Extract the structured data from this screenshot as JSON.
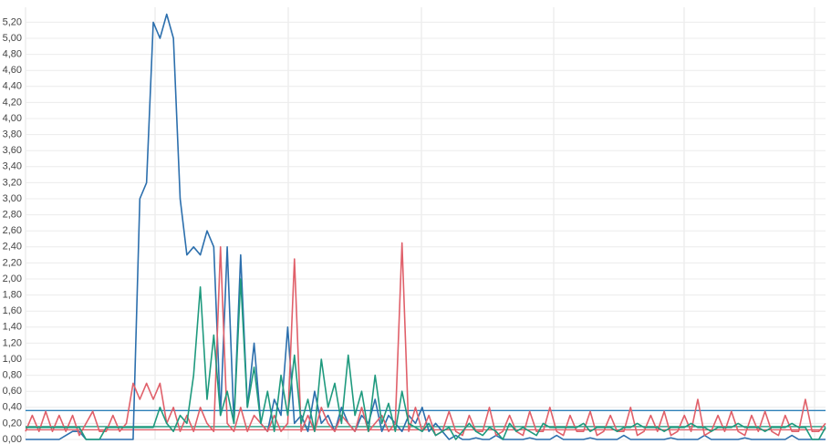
{
  "chart_data": {
    "type": "line",
    "ylim": [
      0,
      5.3
    ],
    "yticks": [
      {
        "value": 0,
        "label": "0,00"
      },
      {
        "value": 0.2,
        "label": "0,20"
      },
      {
        "value": 0.4,
        "label": "0,40"
      },
      {
        "value": 0.6,
        "label": "0,60"
      },
      {
        "value": 0.8,
        "label": "0,80"
      },
      {
        "value": 1.0,
        "label": "1,00"
      },
      {
        "value": 1.2,
        "label": "1,20"
      },
      {
        "value": 1.4,
        "label": "1,40"
      },
      {
        "value": 1.6,
        "label": "1,60"
      },
      {
        "value": 1.8,
        "label": "1,80"
      },
      {
        "value": 2.0,
        "label": "2,00"
      },
      {
        "value": 2.2,
        "label": "2,20"
      },
      {
        "value": 2.4,
        "label": "2,40"
      },
      {
        "value": 2.6,
        "label": "2,60"
      },
      {
        "value": 2.8,
        "label": "2,80"
      },
      {
        "value": 3.0,
        "label": "3,00"
      },
      {
        "value": 3.2,
        "label": "3,20"
      },
      {
        "value": 3.4,
        "label": "3,40"
      },
      {
        "value": 3.6,
        "label": "3,60"
      },
      {
        "value": 3.8,
        "label": "3,80"
      },
      {
        "value": 4.0,
        "label": "4,00"
      },
      {
        "value": 4.2,
        "label": "4,20"
      },
      {
        "value": 4.4,
        "label": "4,40"
      },
      {
        "value": 4.6,
        "label": "4,60"
      },
      {
        "value": 4.8,
        "label": "4,80"
      },
      {
        "value": 5.0,
        "label": "5,00"
      },
      {
        "value": 5.2,
        "label": "5,20"
      }
    ],
    "grid": true,
    "series": [
      {
        "color": "#2c6fad",
        "values": [
          0,
          0,
          0,
          0,
          0,
          0,
          0.05,
          0.1,
          0.1,
          0,
          0,
          0,
          0,
          0,
          0,
          0,
          0,
          3.0,
          3.2,
          5.2,
          5.0,
          5.3,
          5.0,
          3.0,
          2.3,
          2.4,
          2.3,
          2.6,
          2.4,
          0.3,
          2.4,
          0.2,
          2.3,
          0.4,
          1.2,
          0.2,
          0.1,
          0.5,
          0.3,
          1.4,
          0.2,
          0.3,
          0.1,
          0.6,
          0.2,
          0.3,
          0.1,
          0.4,
          0.2,
          0.1,
          0.3,
          0.2,
          0.5,
          0.1,
          0.3,
          0.2,
          0.1,
          0.3,
          0.2,
          0.4,
          0.1,
          0.2,
          0.1,
          0,
          0.05,
          0,
          0,
          0.02,
          0,
          0,
          0.05,
          0,
          0,
          0,
          0,
          0.02,
          0,
          0,
          0,
          0.05,
          0,
          0,
          0,
          0,
          0.02,
          0,
          0,
          0,
          0,
          0.05,
          0,
          0,
          0,
          0,
          0,
          0,
          0.02,
          0,
          0,
          0,
          0,
          0.05,
          0,
          0,
          0,
          0,
          0,
          0.02,
          0,
          0,
          0,
          0,
          0,
          0,
          0.05,
          0,
          0,
          0,
          0,
          0
        ]
      },
      {
        "color": "#e0606a",
        "values": [
          0.1,
          0.3,
          0.1,
          0.35,
          0.1,
          0.3,
          0.1,
          0.3,
          0.05,
          0.2,
          0.35,
          0.1,
          0.1,
          0.3,
          0.1,
          0.2,
          0.7,
          0.5,
          0.7,
          0.5,
          0.7,
          0.2,
          0.4,
          0.1,
          0.3,
          0.1,
          0.4,
          0.2,
          0.1,
          2.4,
          0.2,
          0.1,
          0.4,
          0.1,
          0.3,
          0.2,
          0.1,
          0.3,
          0.1,
          0.2,
          2.25,
          0.1,
          0.3,
          0.1,
          0.4,
          0.2,
          0.1,
          0.3,
          0.2,
          0.1,
          0.4,
          0.1,
          0.2,
          0.3,
          0.1,
          0.2,
          2.45,
          0.1,
          0.4,
          0.1,
          0.3,
          0.05,
          0.1,
          0.35,
          0.1,
          0.05,
          0.3,
          0.1,
          0.1,
          0.4,
          0.05,
          0.1,
          0.3,
          0.1,
          0.05,
          0.35,
          0.1,
          0.1,
          0.4,
          0.1,
          0.05,
          0.3,
          0.1,
          0.1,
          0.35,
          0.05,
          0.1,
          0.3,
          0.1,
          0.1,
          0.4,
          0.05,
          0.1,
          0.3,
          0.1,
          0.35,
          0.05,
          0.1,
          0.3,
          0.1,
          0.5,
          0.05,
          0.1,
          0.3,
          0.1,
          0.35,
          0.1,
          0.05,
          0.3,
          0.1,
          0.35,
          0.1,
          0.05,
          0.3,
          0.1,
          0.1,
          0.5,
          0.1,
          0.1,
          0.2
        ]
      },
      {
        "color": "#1f9a7e",
        "values": [
          0.15,
          0.15,
          0.15,
          0.15,
          0.15,
          0.15,
          0.15,
          0.15,
          0.15,
          0,
          0,
          0,
          0.15,
          0.15,
          0.15,
          0.15,
          0.15,
          0.15,
          0.15,
          0.15,
          0.4,
          0.2,
          0.1,
          0.3,
          0.2,
          0.8,
          1.9,
          0.5,
          1.3,
          0.3,
          0.6,
          0.2,
          2.0,
          0.4,
          0.9,
          0.2,
          0.6,
          0.1,
          0.8,
          0.3,
          1.05,
          0.2,
          0.5,
          0.1,
          1.0,
          0.4,
          0.7,
          0.2,
          1.05,
          0.3,
          0.6,
          0.1,
          0.8,
          0.2,
          0.45,
          0.1,
          0.6,
          0.2,
          0.15,
          0.1,
          0.2,
          0.05,
          0.1,
          0.15,
          0,
          0.1,
          0.2,
          0.1,
          0.05,
          0.15,
          0.1,
          0,
          0.2,
          0.1,
          0.15,
          0.1,
          0.05,
          0.2,
          0.15,
          0.15,
          0.15,
          0.15,
          0.15,
          0.2,
          0.1,
          0.15,
          0.15,
          0.15,
          0.1,
          0.15,
          0.15,
          0.2,
          0.15,
          0.15,
          0.15,
          0.1,
          0.15,
          0.15,
          0.15,
          0.2,
          0.15,
          0.15,
          0.1,
          0.15,
          0.15,
          0.15,
          0.2,
          0.15,
          0.15,
          0.15,
          0.1,
          0.15,
          0.15,
          0.15,
          0.2,
          0.15,
          0.15,
          0,
          0,
          0.15
        ]
      }
    ],
    "reference_lines": [
      {
        "value": 0.36,
        "color": "#2c7fb8"
      },
      {
        "value": 0.16,
        "color": "#1f9a7e"
      },
      {
        "value": 0.12,
        "color": "#e0606a"
      }
    ]
  }
}
